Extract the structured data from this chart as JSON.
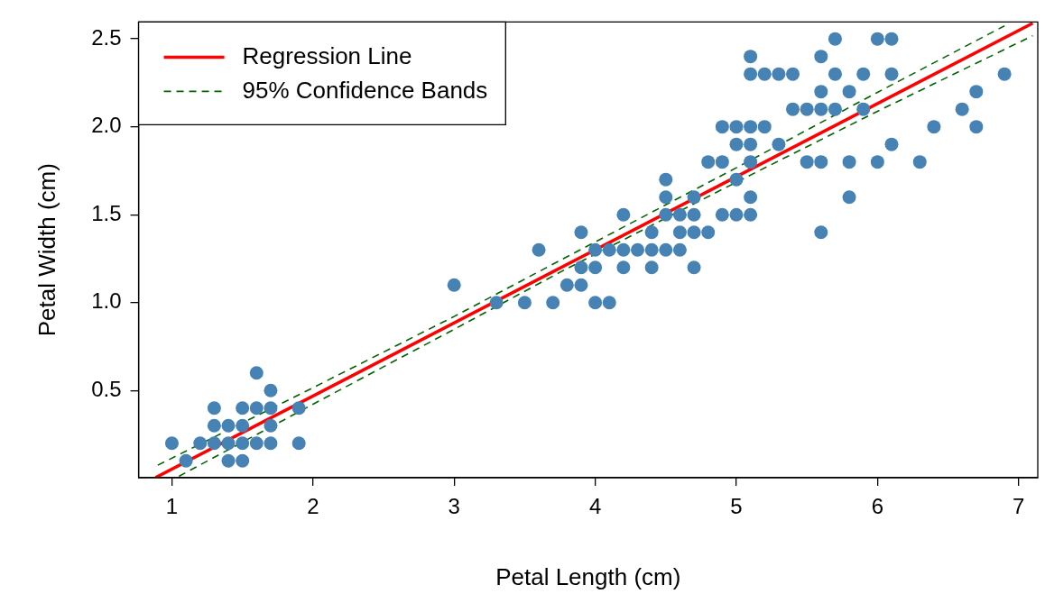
{
  "chart_data": {
    "type": "scatter",
    "xlabel": "Petal Length (cm)",
    "ylabel": "Petal Width (cm)",
    "xlim": [
      0.764,
      7.136
    ],
    "ylim": [
      0.004,
      2.596
    ],
    "xticks": [
      1,
      2,
      3,
      4,
      5,
      6,
      7
    ],
    "yticks": [
      {
        "value": 0.5,
        "label": "0.5"
      },
      {
        "value": 1,
        "label": "1.0"
      },
      {
        "value": 1.5,
        "label": "1.5"
      },
      {
        "value": 2,
        "label": "2.0"
      },
      {
        "value": 2.5,
        "label": "2.5"
      }
    ],
    "grid": false,
    "legend": "top left",
    "series": [
      {
        "marker": "circle",
        "color": "#4682b4",
        "x": [
          1.0,
          1.1,
          1.2,
          1.3,
          1.3,
          1.3,
          1.4,
          1.4,
          1.4,
          1.5,
          1.5,
          1.5,
          1.5,
          1.6,
          1.6,
          1.6,
          1.7,
          1.7,
          1.7,
          1.7,
          1.9,
          1.9,
          4.7,
          4.5,
          4.9,
          4.0,
          4.6,
          4.5,
          4.7,
          3.3,
          4.6,
          3.9,
          3.5,
          4.2,
          4.0,
          3.6,
          4.4,
          4.1,
          3.9,
          4.8,
          4.7,
          4.3,
          4.8,
          5.0,
          3.8,
          3.7,
          3.9,
          5.1,
          4.5,
          4.7,
          4.4,
          4.1,
          4.4,
          4.6,
          4.0,
          4.2,
          4.2,
          3.0,
          6.0,
          5.1,
          5.9,
          5.6,
          5.8,
          6.6,
          4.5,
          6.3,
          5.8,
          6.1,
          5.1,
          5.3,
          5.5,
          5.0,
          5.1,
          5.3,
          5.5,
          6.7,
          6.9,
          5.0,
          5.7,
          4.9,
          6.7,
          4.9,
          5.7,
          6.0,
          5.6,
          5.8,
          6.1,
          6.4,
          5.6,
          5.1,
          5.6,
          6.1,
          5.6,
          5.4,
          5.1,
          5.9,
          5.7,
          5.2,
          5.0,
          5.2,
          5.4,
          5.1
        ],
        "values": [
          0.2,
          0.1,
          0.2,
          0.2,
          0.3,
          0.4,
          0.1,
          0.2,
          0.3,
          0.1,
          0.2,
          0.3,
          0.4,
          0.2,
          0.4,
          0.6,
          0.2,
          0.3,
          0.4,
          0.5,
          0.2,
          0.4,
          1.4,
          1.5,
          1.5,
          1.3,
          1.5,
          1.3,
          1.6,
          1.0,
          1.3,
          1.4,
          1.0,
          1.5,
          1.0,
          1.3,
          1.4,
          1.0,
          1.1,
          1.8,
          1.2,
          1.3,
          1.4,
          1.7,
          1.1,
          1.0,
          1.2,
          1.6,
          1.6,
          1.5,
          1.3,
          1.3,
          1.2,
          1.4,
          1.2,
          1.3,
          1.2,
          1.1,
          2.5,
          1.9,
          2.1,
          1.8,
          2.2,
          2.1,
          1.7,
          1.8,
          1.8,
          2.5,
          2.0,
          1.9,
          2.1,
          2.0,
          2.4,
          2.3,
          1.8,
          2.2,
          2.3,
          1.5,
          2.3,
          2.0,
          2.0,
          1.8,
          2.1,
          1.8,
          2.1,
          1.6,
          1.9,
          2.0,
          2.2,
          1.5,
          1.4,
          2.3,
          2.4,
          2.1,
          2.3,
          2.3,
          2.5,
          2.3,
          1.9,
          2.0,
          2.3,
          1.8
        ]
      },
      {
        "type": "line",
        "name": "Regression Line",
        "color": "#ff0000",
        "line_style": "solid",
        "x": [
          0.885,
          7.1
        ],
        "values": [
          0.005,
          2.589
        ]
      },
      {
        "type": "line",
        "name": "95% Confidence Bands",
        "color": "#006400",
        "line_style": "dashed",
        "x": [
          0.9,
          2,
          3,
          3.758,
          5,
          6,
          6.9
        ],
        "values": [
          0.075,
          0.516,
          0.921,
          1.243,
          1.767,
          2.196,
          2.574
        ]
      },
      {
        "type": "line",
        "color": "#006400",
        "line_style": "dashed",
        "x": [
          1.05,
          2,
          3,
          3.758,
          5,
          6,
          7.1
        ],
        "values": [
          0.012,
          0.422,
          0.848,
          1.176,
          1.685,
          2.088,
          2.518
        ]
      }
    ]
  }
}
